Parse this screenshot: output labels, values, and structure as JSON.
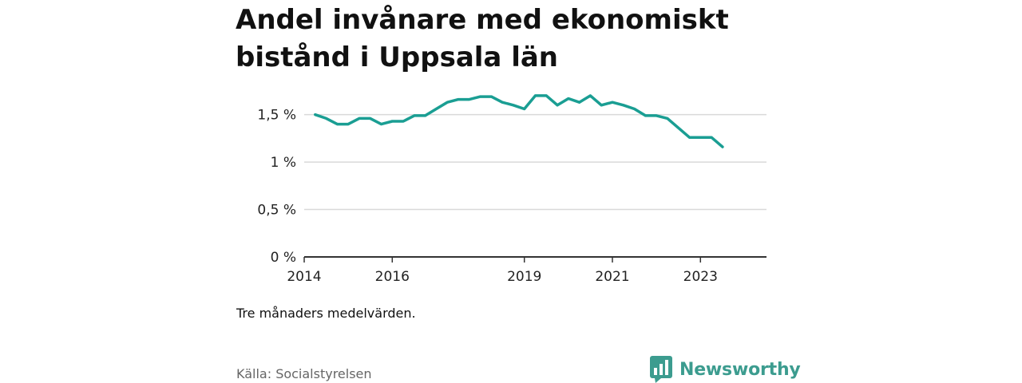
{
  "header": {
    "title": "Andel invånare med ekonomiskt bistånd i Uppsala län"
  },
  "chart_data": {
    "type": "line",
    "title": "Andel invånare med ekonomiskt bistånd i Uppsala län",
    "xlabel": "",
    "ylabel": "",
    "x_ticks": [
      "2014",
      "2016",
      "2019",
      "2021",
      "2023"
    ],
    "y_ticks": [
      "0 %",
      "0,5 %",
      "1 %",
      "1,5 %"
    ],
    "ylim": [
      0,
      1.8
    ],
    "xlim": [
      "2014-01",
      "2024-07"
    ],
    "grid": "horizontal",
    "legend": "none",
    "series": [
      {
        "color": "#1a9e93",
        "x": [
          "2014-04",
          "2014-07",
          "2014-10",
          "2015-01",
          "2015-04",
          "2015-07",
          "2015-10",
          "2016-01",
          "2016-04",
          "2016-07",
          "2016-10",
          "2017-01",
          "2017-04",
          "2017-07",
          "2017-10",
          "2018-01",
          "2018-04",
          "2018-07",
          "2018-10",
          "2019-01",
          "2019-04",
          "2019-07",
          "2019-10",
          "2020-01",
          "2020-04",
          "2020-07",
          "2020-10",
          "2021-01",
          "2021-04",
          "2021-07",
          "2021-10",
          "2022-01",
          "2022-04",
          "2022-07",
          "2022-10",
          "2023-01",
          "2023-04",
          "2023-07",
          "2023-10"
        ],
        "values": [
          1.5,
          1.46,
          1.4,
          1.4,
          1.46,
          1.46,
          1.4,
          1.43,
          1.43,
          1.49,
          1.49,
          1.56,
          1.63,
          1.66,
          1.66,
          1.69,
          1.69,
          1.63,
          1.6,
          1.56,
          1.7,
          1.7,
          1.6,
          1.67,
          1.63,
          1.7,
          1.6,
          1.63,
          1.6,
          1.56,
          1.49,
          1.49,
          1.46,
          1.36,
          1.26,
          1.26,
          1.26,
          1.16,
          null
        ]
      }
    ]
  },
  "footer": {
    "note": "Tre månaders medelvärden.",
    "source": "Källa: Socialstyrelsen",
    "brand": "Newsworthy",
    "brand_icon": "newsworthy-chart-icon"
  }
}
